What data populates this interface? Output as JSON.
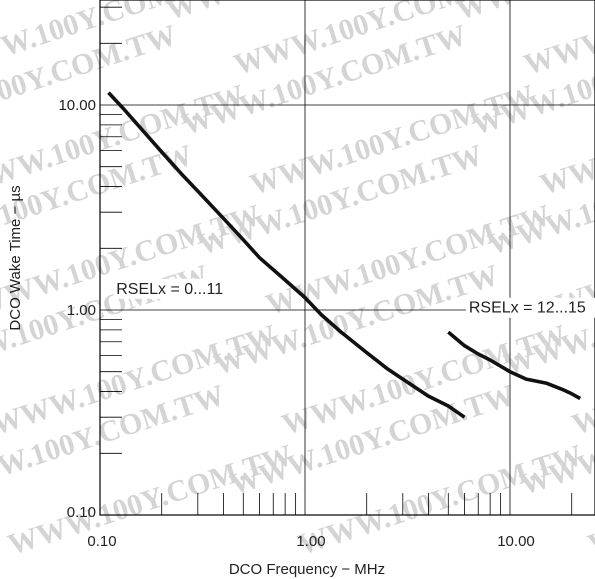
{
  "chart_data": {
    "type": "line",
    "title": "",
    "xlabel": "DCO Frequency − MHz",
    "ylabel": "DCO Wake Time − µs",
    "xscale": "log",
    "yscale": "log",
    "xlim": [
      0.1,
      30
    ],
    "ylim": [
      0.1,
      30
    ],
    "grid": true,
    "x_tick_labels": [
      "0.10",
      "1.00",
      "10.00"
    ],
    "y_tick_labels": [
      "0.10",
      "1.00",
      "10.00"
    ],
    "watermark": "WWW.100Y.COM.TW",
    "series": [
      {
        "name": "RSELx = 0...11",
        "x": [
          0.11,
          0.13,
          0.16,
          0.2,
          0.25,
          0.3,
          0.4,
          0.5,
          0.6,
          0.8,
          1.0,
          1.2,
          1.5,
          2.0,
          2.5,
          3.0,
          4.0,
          5.0,
          6.0
        ],
        "y": [
          11.5,
          9.6,
          7.6,
          5.9,
          4.6,
          3.8,
          2.8,
          2.2,
          1.8,
          1.4,
          1.15,
          0.95,
          0.78,
          0.62,
          0.52,
          0.46,
          0.38,
          0.34,
          0.3
        ]
      },
      {
        "name": "RSELx = 12...15",
        "x": [
          5.0,
          6.0,
          7.0,
          8.0,
          10.0,
          12.0,
          15.0,
          18.0,
          20.0,
          22.0
        ],
        "y": [
          0.78,
          0.67,
          0.61,
          0.57,
          0.5,
          0.46,
          0.44,
          0.41,
          0.39,
          0.37
        ]
      }
    ],
    "annotations": [
      {
        "text": "RSELx = 0...11",
        "x": 0.12,
        "y": 1.2
      },
      {
        "text": "RSELx = 12...15",
        "x": 6.3,
        "y": 0.97
      }
    ]
  }
}
